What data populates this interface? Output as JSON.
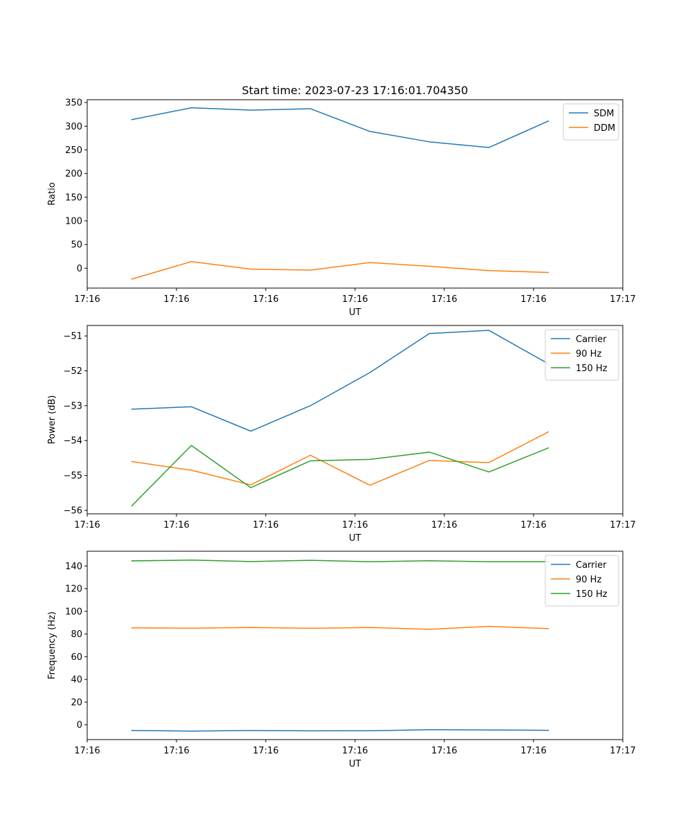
{
  "figure_title": "Start time: 2023-07-23 17:16:01.704350",
  "colors": {
    "blue": "#1f77b4",
    "orange": "#ff7f0e",
    "green": "#2ca02c"
  },
  "chart_data": [
    {
      "type": "line",
      "title": "Start time: 2023-07-23 17:16:01.704350",
      "xlabel": "UT",
      "ylabel": "Ratio",
      "x": [
        1,
        2,
        3,
        4,
        5,
        6,
        7,
        8
      ],
      "xlim": [
        0.25,
        9.25
      ],
      "x_ticks": [
        0.25,
        1.75,
        3.25,
        4.75,
        6.25,
        7.75,
        9.25
      ],
      "x_tick_labels": [
        "17:16",
        "17:16",
        "17:16",
        "17:16",
        "17:16",
        "17:16",
        "17:17"
      ],
      "ylim": [
        -42,
        356
      ],
      "y_ticks": [
        0,
        50,
        100,
        150,
        200,
        250,
        300,
        350
      ],
      "y_tick_labels": [
        "0",
        "50",
        "100",
        "150",
        "200",
        "250",
        "300",
        "350"
      ],
      "legend_position": "top-right",
      "series": [
        {
          "name": "SDM",
          "color": "#1f77b4",
          "values": [
            314,
            339,
            334,
            337,
            289,
            267,
            255,
            311
          ]
        },
        {
          "name": "DDM",
          "color": "#ff7f0e",
          "values": [
            -23,
            14,
            -2,
            -4,
            12,
            4,
            -5,
            -9
          ]
        }
      ]
    },
    {
      "type": "line",
      "title": "",
      "xlabel": "UT",
      "ylabel": "Power (dB)",
      "x": [
        1,
        2,
        3,
        4,
        5,
        6,
        7,
        8
      ],
      "xlim": [
        0.25,
        9.25
      ],
      "x_ticks": [
        0.25,
        1.75,
        3.25,
        4.75,
        6.25,
        7.75,
        9.25
      ],
      "x_tick_labels": [
        "17:16",
        "17:16",
        "17:16",
        "17:16",
        "17:16",
        "17:16",
        "17:17"
      ],
      "ylim": [
        -56.1,
        -50.7
      ],
      "y_ticks": [
        -56,
        -55,
        -54,
        -53,
        -52,
        -51
      ],
      "y_tick_labels": [
        "−56",
        "−55",
        "−54",
        "−53",
        "−52",
        "−51"
      ],
      "legend_position": "top-right",
      "series": [
        {
          "name": "Carrier",
          "color": "#1f77b4",
          "values": [
            -53.1,
            -53.03,
            -53.73,
            -53.0,
            -52.05,
            -50.93,
            -50.84,
            -51.8
          ]
        },
        {
          "name": "90 Hz",
          "color": "#ff7f0e",
          "values": [
            -54.6,
            -54.85,
            -55.27,
            -54.42,
            -55.28,
            -54.57,
            -54.63,
            -53.75
          ]
        },
        {
          "name": "150 Hz",
          "color": "#2ca02c",
          "values": [
            -55.87,
            -54.14,
            -55.35,
            -54.58,
            -54.54,
            -54.33,
            -54.9,
            -54.21
          ]
        }
      ]
    },
    {
      "type": "line",
      "title": "",
      "xlabel": "UT",
      "ylabel": "Frequency (Hz)",
      "x": [
        1,
        2,
        3,
        4,
        5,
        6,
        7,
        8
      ],
      "xlim": [
        0.25,
        9.25
      ],
      "x_ticks": [
        0.25,
        1.75,
        3.25,
        4.75,
        6.25,
        7.75,
        9.25
      ],
      "x_tick_labels": [
        "17:16",
        "17:16",
        "17:16",
        "17:16",
        "17:16",
        "17:16",
        "17:17"
      ],
      "ylim": [
        -13,
        153
      ],
      "y_ticks": [
        0,
        20,
        40,
        60,
        80,
        100,
        120,
        140
      ],
      "y_tick_labels": [
        "0",
        "20",
        "40",
        "60",
        "80",
        "100",
        "120",
        "140"
      ],
      "legend_position": "top-right",
      "series": [
        {
          "name": "Carrier",
          "color": "#1f77b4",
          "values": [
            -5,
            -5.5,
            -5,
            -5.3,
            -5.2,
            -4.3,
            -4.5,
            -4.8
          ]
        },
        {
          "name": "90 Hz",
          "color": "#ff7f0e",
          "values": [
            85.5,
            85.2,
            85.8,
            85.1,
            85.8,
            84.2,
            86.8,
            84.8
          ]
        },
        {
          "name": "150 Hz",
          "color": "#2ca02c",
          "values": [
            144.5,
            145.2,
            143.9,
            145.0,
            143.8,
            144.6,
            143.8,
            143.8
          ]
        }
      ]
    }
  ]
}
